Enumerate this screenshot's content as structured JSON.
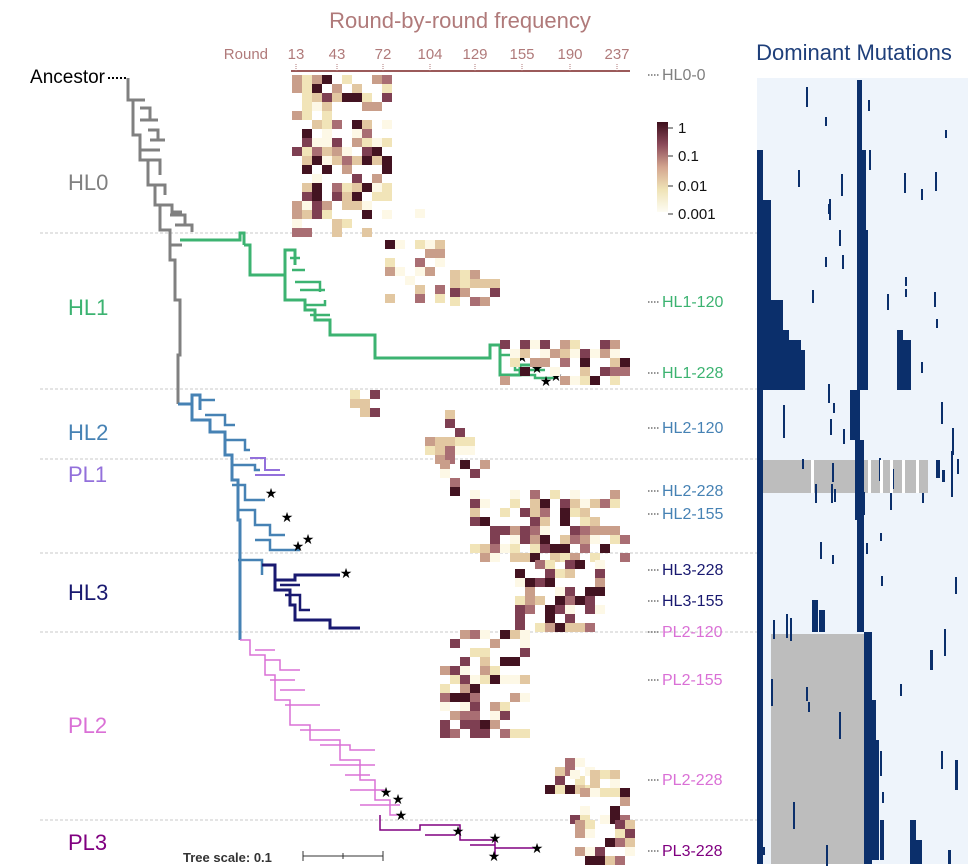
{
  "heatmap": {
    "title": "Round-by-round frequency",
    "round_label": "Round",
    "rounds": [
      "13",
      "43",
      "72",
      "104",
      "129",
      "155",
      "190",
      "237"
    ],
    "colorbar_ticks": [
      "1",
      "0.1",
      "0.01",
      "0.001"
    ]
  },
  "mutations": {
    "title": "Dominant Mutations"
  },
  "tree": {
    "root_label": "Ancestor",
    "scale_label": "Tree scale: 0.1"
  },
  "clades": [
    {
      "name": "HL0",
      "color": "#808080"
    },
    {
      "name": "HL1",
      "color": "#3cb371"
    },
    {
      "name": "HL2",
      "color": "#4682b4"
    },
    {
      "name": "PL1",
      "color": "#9370db"
    },
    {
      "name": "HL3",
      "color": "#191970"
    },
    {
      "name": "PL2",
      "color": "#da70d6"
    },
    {
      "name": "PL3",
      "color": "#800080"
    }
  ],
  "samples": [
    {
      "label": "HL0-0",
      "color": "#808080"
    },
    {
      "label": "HL1-120",
      "color": "#3cb371"
    },
    {
      "label": "HL1-228",
      "color": "#3cb371"
    },
    {
      "label": "HL2-120",
      "color": "#4682b4"
    },
    {
      "label": "HL2-228",
      "color": "#4682b4"
    },
    {
      "label": "HL2-155",
      "color": "#4682b4"
    },
    {
      "label": "HL3-228",
      "color": "#191970"
    },
    {
      "label": "HL3-155",
      "color": "#191970"
    },
    {
      "label": "PL2-120",
      "color": "#da70d6"
    },
    {
      "label": "PL2-155",
      "color": "#da70d6"
    },
    {
      "label": "PL2-228",
      "color": "#da70d6"
    },
    {
      "label": "PL3-228",
      "color": "#800080"
    }
  ]
}
